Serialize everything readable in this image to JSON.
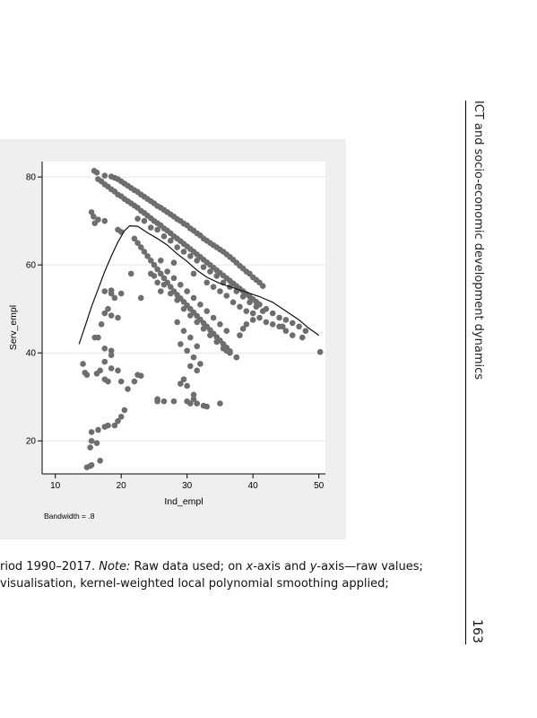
{
  "running_head": "ICT and socio-economic development dynamics",
  "page_number": "163",
  "caption": {
    "line1_prefix": "riod 1990–2017. ",
    "line1_note_label": "Note:",
    "line1_after_note": " Raw data used; on ",
    "line1_x": "x",
    "line1_mid": "-axis and ",
    "line1_y": "y",
    "line1_end": "-axis—raw values;",
    "line2": " visualisation, kernel-weighted local polynomial smoothing applied;"
  },
  "chart_data": {
    "type": "scatter",
    "xlabel": "Ind_empl",
    "ylabel": "Serv_empl",
    "xlim": [
      8,
      51
    ],
    "ylim": [
      12.5,
      83.5
    ],
    "xticks": [
      10,
      20,
      30,
      40,
      50
    ],
    "yticks": [
      20,
      40,
      60,
      80
    ],
    "grid": true,
    "note": "Bandwidth = .8",
    "point_color": "#6e6e6e",
    "line_color": "#111111",
    "points": [
      [
        15.9,
        81.4
      ],
      [
        16.3,
        81
      ],
      [
        17.5,
        80.3
      ],
      [
        18.5,
        80.1
      ],
      [
        19,
        79.8
      ],
      [
        19.5,
        79.5
      ],
      [
        20,
        79
      ],
      [
        20.5,
        78.5
      ],
      [
        21,
        78
      ],
      [
        21.5,
        77.5
      ],
      [
        22,
        77
      ],
      [
        22.5,
        76.6
      ],
      [
        23,
        76
      ],
      [
        23.5,
        75.5
      ],
      [
        24,
        75
      ],
      [
        24.5,
        74.5
      ],
      [
        25,
        74
      ],
      [
        25.5,
        73.4
      ],
      [
        26,
        73
      ],
      [
        26.5,
        72.5
      ],
      [
        27,
        72
      ],
      [
        27.5,
        71.5
      ],
      [
        28,
        71
      ],
      [
        28.5,
        70.4
      ],
      [
        29,
        70
      ],
      [
        29.5,
        69.4
      ],
      [
        30,
        69
      ],
      [
        30.5,
        68.3
      ],
      [
        31,
        67.8
      ],
      [
        31.5,
        67.2
      ],
      [
        32,
        66.7
      ],
      [
        32.5,
        66
      ],
      [
        33,
        65.5
      ],
      [
        33.5,
        65
      ],
      [
        34,
        64.5
      ],
      [
        34.5,
        64
      ],
      [
        35,
        63.5
      ],
      [
        35.5,
        63
      ],
      [
        36,
        62.4
      ],
      [
        36.5,
        61.8
      ],
      [
        37,
        61.2
      ],
      [
        37.5,
        60.5
      ],
      [
        38,
        59.8
      ],
      [
        38.5,
        59.2
      ],
      [
        39,
        58.5
      ],
      [
        39.5,
        58
      ],
      [
        40,
        57.2
      ],
      [
        40.5,
        56.6
      ],
      [
        41,
        56
      ],
      [
        41.5,
        55.2
      ],
      [
        16.5,
        79.5
      ],
      [
        17,
        79
      ],
      [
        17.5,
        78.3
      ],
      [
        18,
        77.8
      ],
      [
        18.5,
        77.2
      ],
      [
        19,
        76.7
      ],
      [
        19.5,
        76
      ],
      [
        20,
        75.6
      ],
      [
        20.5,
        75
      ],
      [
        21,
        74.5
      ],
      [
        21.5,
        74
      ],
      [
        22,
        73.5
      ],
      [
        22.5,
        73
      ],
      [
        23,
        72.3
      ],
      [
        23.5,
        71.8
      ],
      [
        24,
        71.2
      ],
      [
        24.5,
        70.6
      ],
      [
        25,
        70
      ],
      [
        25.5,
        69.5
      ],
      [
        26,
        69
      ],
      [
        26.5,
        68.3
      ],
      [
        27,
        67.8
      ],
      [
        27.5,
        67.2
      ],
      [
        28,
        66.5
      ],
      [
        28.5,
        66
      ],
      [
        29,
        65.4
      ],
      [
        29.5,
        64.8
      ],
      [
        30,
        64.2
      ],
      [
        30.5,
        63.6
      ],
      [
        31,
        63
      ],
      [
        31.5,
        62.4
      ],
      [
        32,
        61.8
      ],
      [
        32.5,
        61.2
      ],
      [
        33,
        60.6
      ],
      [
        33.5,
        60
      ],
      [
        34,
        59.4
      ],
      [
        34.5,
        58.8
      ],
      [
        35,
        58.2
      ],
      [
        35.5,
        57.6
      ],
      [
        36,
        57
      ],
      [
        36.5,
        56.4
      ],
      [
        37,
        55.8
      ],
      [
        37.5,
        55.2
      ],
      [
        38,
        54.6
      ],
      [
        38.5,
        54
      ],
      [
        39,
        53.4
      ],
      [
        39.5,
        52.8
      ],
      [
        40,
        52.2
      ],
      [
        40.5,
        51.6
      ],
      [
        41,
        51
      ],
      [
        42,
        50
      ],
      [
        43,
        49
      ],
      [
        44,
        48
      ],
      [
        45,
        47.5
      ],
      [
        46,
        46.8
      ],
      [
        47,
        46
      ],
      [
        48,
        45
      ],
      [
        44.5,
        46
      ],
      [
        46,
        44
      ],
      [
        47.5,
        43.5
      ],
      [
        22.5,
        70.5
      ],
      [
        23.5,
        70
      ],
      [
        24.5,
        68.5
      ],
      [
        25.5,
        68
      ],
      [
        26.5,
        66.5
      ],
      [
        27.5,
        65.5
      ],
      [
        28.5,
        64
      ],
      [
        29.5,
        63
      ],
      [
        30.5,
        62
      ],
      [
        31.5,
        61
      ],
      [
        32.5,
        59.5
      ],
      [
        33.5,
        58.5
      ],
      [
        34.5,
        57.5
      ],
      [
        35.5,
        56
      ],
      [
        36.5,
        55
      ],
      [
        37.5,
        54
      ],
      [
        38.5,
        52.8
      ],
      [
        39.5,
        51.5
      ],
      [
        40.5,
        50.5
      ],
      [
        41.5,
        49.5
      ],
      [
        22,
        66
      ],
      [
        22.5,
        65
      ],
      [
        23,
        64
      ],
      [
        23.5,
        63
      ],
      [
        24,
        62
      ],
      [
        24.5,
        61
      ],
      [
        25,
        60
      ],
      [
        25.5,
        59
      ],
      [
        26,
        58
      ],
      [
        26.5,
        57
      ],
      [
        27,
        56
      ],
      [
        27.5,
        55
      ],
      [
        28,
        54
      ],
      [
        28.5,
        53.2
      ],
      [
        29,
        52.4
      ],
      [
        29.5,
        51.6
      ],
      [
        30,
        50.8
      ],
      [
        30.5,
        50
      ],
      [
        31,
        49.2
      ],
      [
        31.5,
        48.4
      ],
      [
        32,
        47.6
      ],
      [
        32.5,
        46.8
      ],
      [
        33,
        46
      ],
      [
        33.5,
        45.2
      ],
      [
        34,
        44.4
      ],
      [
        34.5,
        43.6
      ],
      [
        35,
        42.8
      ],
      [
        35.5,
        42
      ],
      [
        36,
        41.2
      ],
      [
        36.5,
        40.4
      ],
      [
        27,
        58.5
      ],
      [
        28,
        57
      ],
      [
        29,
        55.5
      ],
      [
        30,
        54
      ],
      [
        31,
        52.5
      ],
      [
        32,
        51
      ],
      [
        33,
        49.5
      ],
      [
        34,
        48
      ],
      [
        35,
        46.5
      ],
      [
        36,
        45
      ],
      [
        28.5,
        47
      ],
      [
        29.5,
        45
      ],
      [
        30.5,
        43.5
      ],
      [
        31.5,
        41.5
      ],
      [
        29,
        42
      ],
      [
        30,
        40.5
      ],
      [
        31,
        39
      ],
      [
        32,
        37.5
      ],
      [
        31.5,
        36
      ],
      [
        30.5,
        37
      ],
      [
        24.5,
        58
      ],
      [
        25.5,
        56
      ],
      [
        26,
        54
      ],
      [
        26.5,
        55.5
      ],
      [
        27.5,
        53.5
      ],
      [
        28.5,
        52
      ],
      [
        29.5,
        50
      ],
      [
        30.5,
        48.5
      ],
      [
        31.5,
        47
      ],
      [
        32.5,
        45.5
      ],
      [
        33.5,
        44
      ],
      [
        34.5,
        42.5
      ],
      [
        35.5,
        41
      ],
      [
        36.5,
        40
      ],
      [
        37.5,
        39
      ],
      [
        38,
        44
      ],
      [
        38.5,
        45.5
      ],
      [
        39,
        46.5
      ],
      [
        40,
        47.5
      ],
      [
        41,
        48
      ],
      [
        15.5,
        72
      ],
      [
        15.8,
        71
      ],
      [
        16.5,
        70.3
      ],
      [
        17.5,
        70
      ],
      [
        19.5,
        68
      ],
      [
        20,
        67.5
      ],
      [
        16,
        69.5
      ],
      [
        17.5,
        54
      ],
      [
        18.5,
        53.5
      ],
      [
        19,
        52.5
      ],
      [
        18,
        50
      ],
      [
        17.5,
        49
      ],
      [
        18.5,
        48.5
      ],
      [
        19.5,
        48
      ],
      [
        17,
        46.5
      ],
      [
        16.5,
        43.5
      ],
      [
        16,
        43.5
      ],
      [
        17.5,
        41
      ],
      [
        18.5,
        40.5
      ],
      [
        18.5,
        39.5
      ],
      [
        17.5,
        38
      ],
      [
        16.8,
        36
      ],
      [
        17.5,
        34
      ],
      [
        18.5,
        36.5
      ],
      [
        19.5,
        36
      ],
      [
        20,
        33.5
      ],
      [
        14.2,
        37.5
      ],
      [
        14.5,
        35.5
      ],
      [
        14.8,
        35
      ],
      [
        16.3,
        35.3
      ],
      [
        18,
        33.5
      ],
      [
        22,
        33.5
      ],
      [
        22.5,
        35
      ],
      [
        23,
        34.8
      ],
      [
        21,
        31.8
      ],
      [
        20.5,
        27
      ],
      [
        20,
        25.5
      ],
      [
        19.5,
        24.5
      ],
      [
        19,
        23.5
      ],
      [
        18,
        23.5
      ],
      [
        17.5,
        23.2
      ],
      [
        16.5,
        22.5
      ],
      [
        15.5,
        22
      ],
      [
        15.5,
        20
      ],
      [
        15.3,
        18.5
      ],
      [
        16.3,
        19.5
      ],
      [
        16.8,
        15.5
      ],
      [
        15.5,
        14.5
      ],
      [
        14.8,
        14
      ],
      [
        15.3,
        14.3
      ],
      [
        25.5,
        29.5
      ],
      [
        25.5,
        29
      ],
      [
        26.5,
        29
      ],
      [
        28,
        29
      ],
      [
        30,
        29
      ],
      [
        30.5,
        28.5
      ],
      [
        31,
        29.5
      ],
      [
        31.5,
        28.5
      ],
      [
        32.5,
        28
      ],
      [
        33,
        27.8
      ],
      [
        35,
        28.5
      ],
      [
        31,
        30.5
      ],
      [
        29,
        33
      ],
      [
        30,
        32.5
      ],
      [
        29.5,
        34
      ],
      [
        50.2,
        40.2
      ],
      [
        37.5,
        39
      ],
      [
        36,
        40.5
      ],
      [
        35.5,
        42
      ],
      [
        18.5,
        54.2
      ],
      [
        23,
        52.5
      ],
      [
        21.5,
        58
      ],
      [
        20,
        53.5
      ],
      [
        25,
        57.5
      ],
      [
        28,
        60.5
      ],
      [
        26,
        61
      ],
      [
        31,
        58
      ],
      [
        33,
        56
      ],
      [
        34,
        55
      ],
      [
        35,
        54
      ],
      [
        36,
        53
      ],
      [
        37,
        51.5
      ],
      [
        38,
        50.5
      ],
      [
        39,
        49.5
      ],
      [
        40,
        49
      ],
      [
        42,
        47
      ],
      [
        43,
        46.5
      ],
      [
        44,
        46
      ],
      [
        45,
        45
      ]
    ],
    "smooth_line": [
      [
        13.6,
        42
      ],
      [
        14.5,
        46
      ],
      [
        15.5,
        50.5
      ],
      [
        16.5,
        54.5
      ],
      [
        17.5,
        58.5
      ],
      [
        18.5,
        62
      ],
      [
        19.5,
        65.2
      ],
      [
        20.5,
        67.8
      ],
      [
        21.3,
        68.9
      ],
      [
        22.5,
        68.8
      ],
      [
        24,
        67.3
      ],
      [
        25.5,
        66
      ],
      [
        27,
        64.5
      ],
      [
        28.5,
        62.5
      ],
      [
        30,
        60.8
      ],
      [
        31.5,
        58.8
      ],
      [
        33,
        57.2
      ],
      [
        35,
        55.8
      ],
      [
        37,
        54.8
      ],
      [
        39,
        53.8
      ],
      [
        41,
        52.8
      ],
      [
        43,
        51.5
      ],
      [
        45,
        49.5
      ],
      [
        47,
        47.5
      ],
      [
        48.5,
        45.6
      ],
      [
        50,
        44
      ]
    ]
  }
}
